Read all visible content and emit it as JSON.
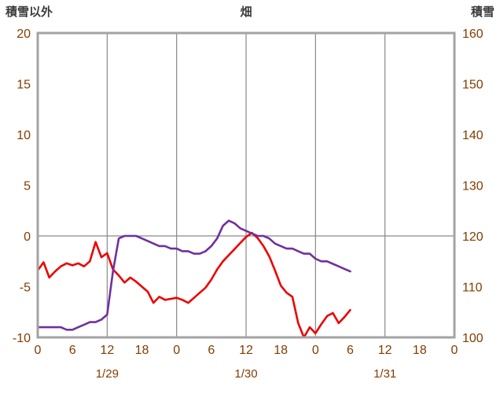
{
  "header": {
    "left_axis_title": "積雪以外",
    "chart_title": "畑",
    "right_axis_title": "積雪"
  },
  "colors": {
    "red_series": "#ee0000",
    "purple_series": "#7030a0",
    "border": "#a3a3a3",
    "grid": "#898989",
    "tick_label": "#833c00",
    "header_text": "#3b3b3b",
    "background": "#ffffff"
  },
  "chart_data": {
    "type": "line",
    "title": "畑",
    "x_unit": "hour",
    "x_range": [
      0,
      72
    ],
    "x_ticks": [
      {
        "hour": 0,
        "label": "0"
      },
      {
        "hour": 6,
        "label": "6"
      },
      {
        "hour": 12,
        "label": "12"
      },
      {
        "hour": 18,
        "label": "18"
      },
      {
        "hour": 24,
        "label": "0"
      },
      {
        "hour": 30,
        "label": "6"
      },
      {
        "hour": 36,
        "label": "12"
      },
      {
        "hour": 42,
        "label": "18"
      },
      {
        "hour": 48,
        "label": "0"
      },
      {
        "hour": 54,
        "label": "6"
      },
      {
        "hour": 60,
        "label": "12"
      },
      {
        "hour": 66,
        "label": "18"
      },
      {
        "hour": 72,
        "label": "0"
      }
    ],
    "x_date_labels": [
      {
        "hour": 12,
        "label": "1/29"
      },
      {
        "hour": 36,
        "label": "1/30"
      },
      {
        "hour": 60,
        "label": "1/31"
      }
    ],
    "left_axis": {
      "title": "積雪以外",
      "min": -10,
      "max": 20,
      "ticks": [
        20,
        15,
        10,
        5,
        0,
        -5,
        -10
      ]
    },
    "right_axis": {
      "title": "積雪",
      "min": 100,
      "max": 160,
      "ticks": [
        160,
        150,
        140,
        130,
        120,
        110,
        100
      ]
    },
    "grid": {
      "vertical_hours": [
        12,
        24,
        36,
        48,
        60
      ],
      "horizontal_left_values": [
        0
      ]
    },
    "series": [
      {
        "name": "積雪以外",
        "axis": "left",
        "color_key": "red_series",
        "x_start": 0,
        "x_step": 1,
        "values": [
          -3.4,
          -2.6,
          -4.1,
          -3.5,
          -3.0,
          -2.7,
          -2.9,
          -2.7,
          -3.0,
          -2.5,
          -0.6,
          -2.1,
          -1.7,
          -3.3,
          -3.9,
          -4.6,
          -4.1,
          -4.5,
          -5.0,
          -5.5,
          -6.6,
          -6.0,
          -6.3,
          -6.2,
          -6.1,
          -6.3,
          -6.6,
          -6.1,
          -5.6,
          -5.1,
          -4.3,
          -3.3,
          -2.5,
          -1.9,
          -1.3,
          -0.7,
          -0.1,
          0.3,
          -0.2,
          -1.0,
          -2.0,
          -3.4,
          -4.9,
          -5.6,
          -6.0,
          -8.6,
          -10.0,
          -9.0,
          -9.6,
          -8.7,
          -7.9,
          -7.6,
          -8.6,
          -8.0,
          -7.3
        ]
      },
      {
        "name": "積雪",
        "axis": "right",
        "color_key": "purple_series",
        "x_start": 0,
        "x_step": 1,
        "values": [
          102,
          102,
          102,
          102,
          102,
          101.5,
          101.5,
          102,
          102.5,
          103,
          103,
          103.5,
          104.5,
          113,
          119.5,
          120,
          120,
          120,
          119.5,
          119,
          118.5,
          118,
          118,
          117.5,
          117.5,
          117,
          117,
          116.5,
          116.5,
          117,
          118,
          119.5,
          122,
          123,
          122.5,
          121.5,
          121,
          120.5,
          120,
          120,
          119.5,
          118.5,
          118,
          117.5,
          117.5,
          117,
          116.5,
          116.5,
          115.5,
          115,
          115,
          114.5,
          114,
          113.5,
          113
        ]
      }
    ]
  }
}
